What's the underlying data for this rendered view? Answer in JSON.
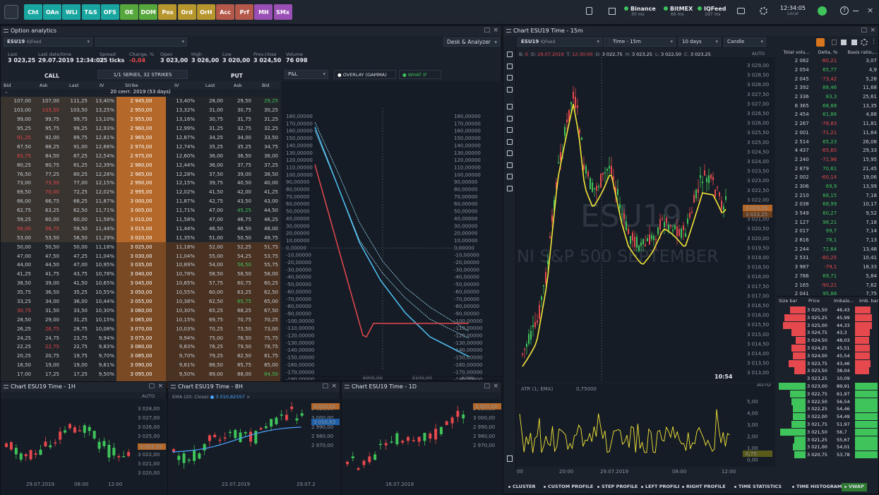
{
  "toolbar": {
    "buttons": [
      {
        "label": "Cht",
        "color": "#1aa6a0"
      },
      {
        "label": "OAn",
        "color": "#1aa6a0"
      },
      {
        "label": "WLi",
        "color": "#1aa6a0"
      },
      {
        "label": "T&S",
        "color": "#1aa6a0"
      },
      {
        "label": "OFS",
        "color": "#1aa6a0"
      },
      {
        "label": "OE",
        "color": "#57a83c"
      },
      {
        "label": "DOM",
        "color": "#57a83c"
      },
      {
        "label": "Pos",
        "color": "#b8962e"
      },
      {
        "label": "Ord",
        "color": "#b8962e"
      },
      {
        "label": "OrH",
        "color": "#b8962e"
      },
      {
        "label": "Acc",
        "color": "#b55a4a"
      },
      {
        "label": "Prf",
        "color": "#b55a4a"
      },
      {
        "label": "MH",
        "color": "#9a4fb5"
      },
      {
        "label": "SMx",
        "color": "#9a4fb5"
      }
    ],
    "connections": [
      {
        "name": "Binance",
        "ms": "30 ms"
      },
      {
        "name": "BitMEX",
        "ms": "66 ms"
      },
      {
        "name": "IQFeed",
        "ms": "197 ms"
      }
    ],
    "clock": "12:34:05",
    "clock_zone": "Local"
  },
  "option_panel": {
    "title": "Option analytics",
    "symbol": "ESU19",
    "feed": "IQFeed",
    "mode": "Desk & Analyzer",
    "quote": [
      {
        "h": "Last",
        "v": "3 023,25"
      },
      {
        "h": "Last date/time",
        "v": "29.07.2019 12:34:02"
      },
      {
        "h": "Spread",
        "v": "25 ticks"
      },
      {
        "h": "Change, %",
        "v": "-0,04"
      },
      {
        "h": "Open",
        "v": "3 023,00"
      },
      {
        "h": "High",
        "v": "3 026,00"
      },
      {
        "h": "Low",
        "v": "3 020,00"
      },
      {
        "h": "Prev.close",
        "v": "3 024,50"
      },
      {
        "h": "Volume",
        "v": "76 098"
      }
    ],
    "call_label": "CALL",
    "put_label": "PUT",
    "series_label": "1/1 SERIES, 32 STRIKES",
    "columns": [
      "Bid",
      "Ask",
      "Last",
      "IV",
      "Strike",
      "IV",
      "Last",
      "Ask",
      "Bid"
    ],
    "expiry": "20 сент. 2019 (53 days)",
    "rows": [
      [
        "107,00",
        "107,00",
        "111,25",
        "13,40%",
        "2 945,00",
        "13,40%",
        "28,00",
        "29,50",
        "29,25"
      ],
      [
        "103,00",
        "103,50",
        "103,50",
        "13,25%",
        "2 950,00",
        "13,32%",
        "31,00",
        "30,75",
        "30,25"
      ],
      [
        "99,00",
        "99,75",
        "99,75",
        "13,10%",
        "2 955,00",
        "13,16%",
        "30,75",
        "31,75",
        "31,25"
      ],
      [
        "95,25",
        "95,75",
        "99,25",
        "12,93%",
        "2 960,00",
        "12,99%",
        "31,25",
        "32,75",
        "32,25"
      ],
      [
        "91,25",
        "92,00",
        "89,75",
        "12,81%",
        "2 965,00",
        "12,87%",
        "34,25",
        "34,00",
        "33,50"
      ],
      [
        "87,50",
        "88,25",
        "91,00",
        "12,68%",
        "2 970,00",
        "12,74%",
        "35,25",
        "35,25",
        "34,75"
      ],
      [
        "83,75",
        "84,50",
        "87,25",
        "12,54%",
        "2 975,00",
        "12,60%",
        "36,00",
        "36,50",
        "36,00"
      ],
      [
        "80,25",
        "80,75",
        "81,25",
        "12,39%",
        "2 980,00",
        "12,44%",
        "36,00",
        "37,75",
        "37,25"
      ],
      [
        "76,50",
        "77,25",
        "80,25",
        "12,28%",
        "2 985,00",
        "12,28%",
        "37,50",
        "39,00",
        "38,50"
      ],
      [
        "73,00",
        "73,50",
        "77,00",
        "12,15%",
        "2 990,00",
        "12,15%",
        "39,75",
        "40,50",
        "40,00"
      ],
      [
        "69,50",
        "70,00",
        "72,25",
        "12,02%",
        "2 995,00",
        "12,02%",
        "41,50",
        "42,00",
        "41,25"
      ],
      [
        "66,00",
        "66,75",
        "66,25",
        "11,87%",
        "3 000,00",
        "11,87%",
        "42,75",
        "43,50",
        "43,00"
      ],
      [
        "62,75",
        "63,25",
        "62,50",
        "11,71%",
        "3 005,00",
        "11,71%",
        "47,00",
        "45,25",
        "44,50"
      ],
      [
        "59,25",
        "60,00",
        "60,00",
        "11,58%",
        "3 010,00",
        "11,58%",
        "47,00",
        "46,75",
        "46,25"
      ],
      [
        "56,00",
        "56,75",
        "59,50",
        "11,44%",
        "3 015,00",
        "11,44%",
        "46,50",
        "48,50",
        "48,00"
      ],
      [
        "53,00",
        "53,50",
        "56,50",
        "11,29%",
        "3 020,00",
        "11,35%",
        "51,00",
        "50,50",
        "49,75"
      ],
      [
        "50,00",
        "50,50",
        "50,00",
        "11,18%",
        "3 025,00",
        "11,18%",
        "52,00",
        "52,25",
        "51,75"
      ],
      [
        "47,00",
        "47,50",
        "47,25",
        "11,04%",
        "3 030,00",
        "11,04%",
        "55,00",
        "54,25",
        "53,75"
      ],
      [
        "44,00",
        "44,50",
        "47,00",
        "10,95%",
        "3 035,00",
        "10,89%",
        "54,00",
        "56,50",
        "55,75"
      ],
      [
        "41,25",
        "41,75",
        "43,75",
        "10,78%",
        "3 040,00",
        "10,78%",
        "58,50",
        "58,50",
        "58,00"
      ],
      [
        "38,50",
        "39,00",
        "41,50",
        "10,65%",
        "3 045,00",
        "10,65%",
        "57,75",
        "60,75",
        "60,25"
      ],
      [
        "35,75",
        "36,50",
        "35,25",
        "10,55%",
        "3 050,00",
        "10,55%",
        "60,00",
        "63,25",
        "62,50"
      ],
      [
        "33,25",
        "34,00",
        "36,00",
        "10,44%",
        "3 055,00",
        "10,38%",
        "62,50",
        "65,75",
        "65,00"
      ],
      [
        "30,75",
        "31,50",
        "33,50",
        "10,30%",
        "3 060,00",
        "10,30%",
        "65,25",
        "68,25",
        "67,50"
      ],
      [
        "28,50",
        "29,00",
        "31,25",
        "10,15%",
        "3 065,00",
        "10,15%",
        "69,75",
        "70,75",
        "70,25"
      ],
      [
        "26,25",
        "26,75",
        "28,75",
        "10,08%",
        "3 070,00",
        "10,03%",
        "70,25",
        "73,50",
        "73,00"
      ],
      [
        "24,25",
        "24,75",
        "23,75",
        "9,94%",
        "3 075,00",
        "9,94%",
        "75,00",
        "76,50",
        "75,75"
      ],
      [
        "22,25",
        "22,75",
        "22,75",
        "9,83%",
        "3 080,00",
        "9,83%",
        "76,25",
        "79,50",
        "78,75"
      ],
      [
        "20,25",
        "20,75",
        "19,75",
        "9,70%",
        "3 085,00",
        "9,70%",
        "79,25",
        "82,50",
        "81,75"
      ],
      [
        "18,50",
        "19,00",
        "19,00",
        "9,61%",
        "3 090,00",
        "9,61%",
        "88,50",
        "85,75",
        "85,00"
      ],
      [
        "17,00",
        "17,25",
        "17,25",
        "9,50%",
        "3 095,00",
        "9,50%",
        "89,00",
        "88,00",
        "84,50"
      ],
      [
        "15,25",
        "15,75",
        "15,50",
        "9,42%",
        "3 100,00",
        "9,56%",
        "89,50",
        "93,00",
        "91,25"
      ]
    ],
    "pnl_select": "P&L",
    "overlay_label": "OVERLAY (GAMMA)",
    "whatif_label": "WHAT IF",
    "pnl_axis": [
      "180,00000",
      "170,00000",
      "160,00000",
      "150,00000",
      "140,00000",
      "130,00000",
      "120,00000",
      "110,00000",
      "100,00000",
      "90,00000",
      "80,00000",
      "70,00000",
      "60,00000",
      "50,00000",
      "40,00000",
      "30,00000",
      "20,00000",
      "10,00000",
      "0,00000",
      "-10,00000",
      "-20,00000",
      "-30,00000",
      "-40,00000",
      "-50,00000",
      "-60,00000",
      "-70,00000",
      "-80,00000",
      "-90,00000",
      "-100,00000",
      "-110,00000",
      "-120,00000",
      "-130,00000",
      "-140,00000",
      "-150,00000",
      "-160,00000",
      "-170,00000",
      "-180,00000"
    ],
    "pnl_x": [
      "3000,00",
      "3100,00",
      "3200,"
    ]
  },
  "main_chart": {
    "title": "Chart ESU19 Time - 15m",
    "timeframe": "Time - 15m",
    "range": "10 days",
    "style": "Candle",
    "symbol": "ESU19",
    "feed": "IQFeed",
    "ohlc": {
      "b": "0",
      "date": "29.07.2019",
      "time": "12:30:00",
      "o": "3 022,75",
      "h": "3 023,25",
      "l": "3 022,50",
      "c": "3 023,25"
    },
    "auto": "AUTO",
    "watermark1": "ESU19",
    "watermark2": "NI S&P 500 SEPTEMBER",
    "price_axis": [
      "3 029,00",
      "3 028,50",
      "3 028,00",
      "3 027,50",
      "3 027,00",
      "3 026,50",
      "3 026,00",
      "3 025,50",
      "3 025,00",
      "3 024,50",
      "3 024,00",
      "3 023,50",
      "3 023,00",
      "3 022,50",
      "3 022,00",
      "3 021,50",
      "3 021,00",
      "3 020,50",
      "3 020,00",
      "3 019,50",
      "3 019,00",
      "3 018,50",
      "3 018,00",
      "3 017,50",
      "3 017,00",
      "3 016,50",
      "3 016,00",
      "3 015,50",
      "3 015,00",
      "3 014,50",
      "3 014,00",
      "3 013,50",
      "3 013,00"
    ],
    "last_price": "3 023,25",
    "last_price_alt": "3 023,25",
    "ts": "10:54",
    "atr_label": "ATR (1; EMA)",
    "atr_value": "0,75000",
    "atr_axis": [
      "5,00",
      "4,00",
      "3,00",
      "2,00",
      "1,00",
      "0,00"
    ],
    "atr_last": "0,75",
    "time_axis": [
      "00",
      "20:00",
      "29.07.2019",
      "08:00",
      "12:00"
    ],
    "cluster_header": [
      "Total volu...",
      "Delta, %",
      "Basis ratio,..."
    ],
    "cluster_rows": [
      [
        "2 082",
        "-80,21",
        "3,07"
      ],
      [
        "2 054",
        "65,77",
        "4,9"
      ],
      [
        "2 045",
        "-73,42",
        "5,28"
      ],
      [
        "2 392",
        "88,46",
        "11,68"
      ],
      [
        "2 336",
        "83,3",
        "25,61"
      ],
      [
        "8 365",
        "68,88",
        "13,35"
      ],
      [
        "2 454",
        "61,86",
        "4,88"
      ],
      [
        "2 267",
        "-78,83",
        "11,81"
      ],
      [
        "2 001",
        "-71,21",
        "11,64"
      ],
      [
        "2 514",
        "65,23",
        "26,08"
      ],
      [
        "4 437",
        "-65,65",
        "29,33"
      ],
      [
        "2 240",
        "-71,96",
        "15,95"
      ],
      [
        "2 879",
        "70,61",
        "21,45"
      ],
      [
        "2 002",
        "-60,14",
        "19,06"
      ],
      [
        "2 306",
        "69,9",
        "13,99"
      ],
      [
        "2 210",
        "66,15",
        "7,18"
      ],
      [
        "2 038",
        "68,99",
        "10,17"
      ],
      [
        "3 549",
        "60,27",
        "9,52"
      ],
      [
        "2 127",
        "98,21",
        "7,18"
      ],
      [
        "2 017",
        "99,7",
        "7,14"
      ],
      [
        "2 816",
        "78,1",
        "7,13"
      ],
      [
        "2 244",
        "72,64",
        "13,48"
      ],
      [
        "2 531",
        "-60,25",
        "10,41"
      ],
      [
        "3 987",
        "-79,1",
        "18,33"
      ],
      [
        "2 786",
        "69,71",
        "5,84"
      ],
      [
        "2 165",
        "-90,21",
        "7,62"
      ],
      [
        "2 041",
        "95,88",
        "7,75"
      ]
    ],
    "dom_header": [
      "Size bar",
      "Price",
      "Imbala...",
      "Imb. bar"
    ],
    "dom_rows": [
      {
        "p": "3 025,50",
        "i": "46,43",
        "s": 0.55,
        "side": "ask"
      },
      {
        "p": "3 025,25",
        "i": "45,99",
        "s": 0.75,
        "side": "ask"
      },
      {
        "p": "3 025,00",
        "i": "44,33",
        "s": 0.8,
        "side": "ask"
      },
      {
        "p": "3 024,75",
        "i": "43,3",
        "s": 0.5,
        "side": "ask"
      },
      {
        "p": "3 024,50",
        "i": "48,03",
        "s": 0.35,
        "side": "ask"
      },
      {
        "p": "3 024,25",
        "i": "45,51",
        "s": 0.5,
        "side": "ask"
      },
      {
        "p": "3 024,00",
        "i": "45,54",
        "s": 0.45,
        "side": "ask"
      },
      {
        "p": "3 023,75",
        "i": "43,46",
        "s": 0.6,
        "side": "ask"
      },
      {
        "p": "3 023,50",
        "i": "38,04",
        "s": 0.4,
        "side": "ask"
      },
      {
        "p": "3 023,25",
        "i": "10,09",
        "s": 0.0,
        "side": "mid"
      },
      {
        "p": "3 023,00",
        "i": "89,91",
        "s": 0.95,
        "side": "bid"
      },
      {
        "p": "3 022,75",
        "i": "61,97",
        "s": 0.55,
        "side": "bid"
      },
      {
        "p": "3 022,50",
        "i": "56,54",
        "s": 0.5,
        "side": "bid"
      },
      {
        "p": "3 022,25",
        "i": "54,46",
        "s": 0.45,
        "side": "bid"
      },
      {
        "p": "3 022,00",
        "i": "54,49",
        "s": 0.45,
        "side": "bid"
      },
      {
        "p": "3 021,75",
        "i": "51,97",
        "s": 0.5,
        "side": "bid"
      },
      {
        "p": "3 021,50",
        "i": "56,7",
        "s": 0.9,
        "side": "bid"
      },
      {
        "p": "3 021,25",
        "i": "55,67",
        "s": 0.4,
        "side": "bid"
      },
      {
        "p": "3 021,00",
        "i": "54,01",
        "s": 0.45,
        "side": "bid"
      },
      {
        "p": "3 020,75",
        "i": "53,78",
        "s": 0.4,
        "side": "bid"
      }
    ],
    "bottom_buttons": [
      "CLUSTER",
      "CUSTOM PROFILE",
      "STEP PROFILE",
      "LEFT PROFILE",
      "RIGHT PROFILE",
      "TIME STATISTICS",
      "TIME HISTOGRAM",
      "VWAP"
    ]
  },
  "chart_1h": {
    "title": "Chart ESU19 Time - 1H",
    "auto": "AUTO",
    "axis": [
      "3 028,00",
      "3 027,00",
      "3 026,00",
      "3 025,00",
      "3 024,00",
      "3 022,00",
      "3 021,00",
      "3 020,00"
    ],
    "last": "3 023,25",
    "time": [
      "29.07.2019",
      "08:00",
      "12:00"
    ]
  },
  "chart_8h": {
    "title": "Chart ESU19 Time - 8H",
    "ema_label": "EMA (20; Close)",
    "ema_value": "3 010,82557",
    "axis": [
      "3 020,00",
      "3 000,00",
      "2 990,00",
      "2 980,00",
      "2 970,00"
    ],
    "last": "3 023,25",
    "ema_last": "3 010,83",
    "time": [
      "22.07.2019",
      "29.07.2"
    ]
  },
  "chart_1d": {
    "title": "Chart ESU19 Time - 1D",
    "axis": [
      "3 010,00",
      "3 000,00",
      "2 990,00",
      "2 980,00",
      "2 970,00"
    ],
    "last": "3 023,25",
    "time": [
      "16.07.2019"
    ]
  }
}
